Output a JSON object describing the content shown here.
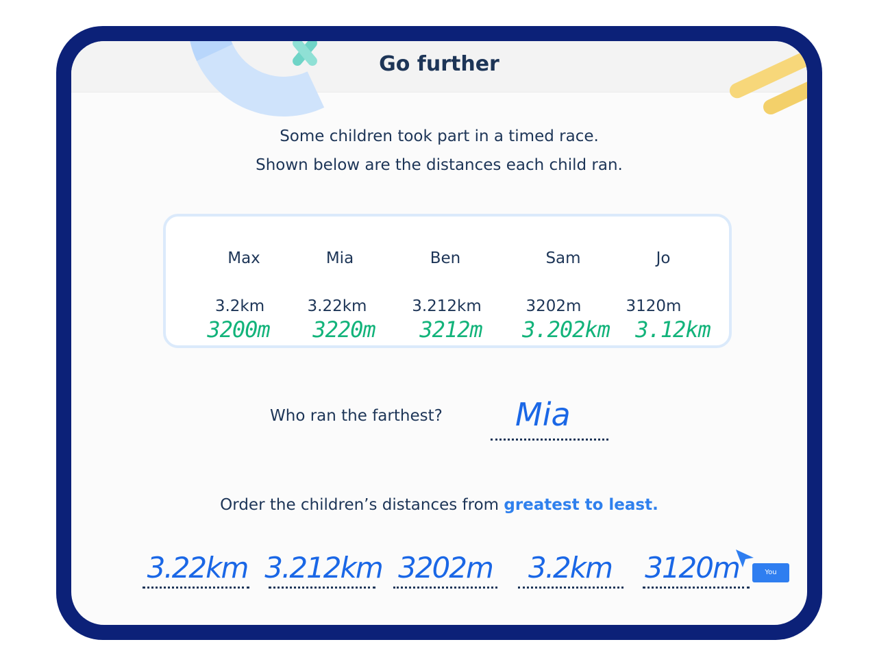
{
  "header": {
    "title": "Go further"
  },
  "intro": {
    "line1": "Some children took part in a timed race.",
    "line2": "Shown below are the distances each child ran."
  },
  "children": [
    {
      "name": "Max",
      "distance": "3.2km",
      "converted": "3200m"
    },
    {
      "name": "Mia",
      "distance": "3.22km",
      "converted": "3220m"
    },
    {
      "name": "Ben",
      "distance": "3.212km",
      "converted": "3212m"
    },
    {
      "name": "Sam",
      "distance": "3202m",
      "converted": "3.202km"
    },
    {
      "name": "Jo",
      "distance": "3120m",
      "converted": "3.12km"
    }
  ],
  "question": {
    "text": "Who ran the farthest?",
    "answer": "Mia"
  },
  "order": {
    "prompt_prefix": "Order the children’s distances from ",
    "prompt_highlight": "greatest to least.",
    "answers": [
      "3.22km",
      "3.212km",
      "3202m",
      "3.2km",
      "3120m"
    ]
  },
  "cursor": {
    "badge_label": "You"
  },
  "colors": {
    "frame": "#0c2178",
    "handwriting_green": "#12b37a",
    "handwriting_blue": "#1a67e6",
    "highlight": "#2f80ed"
  }
}
